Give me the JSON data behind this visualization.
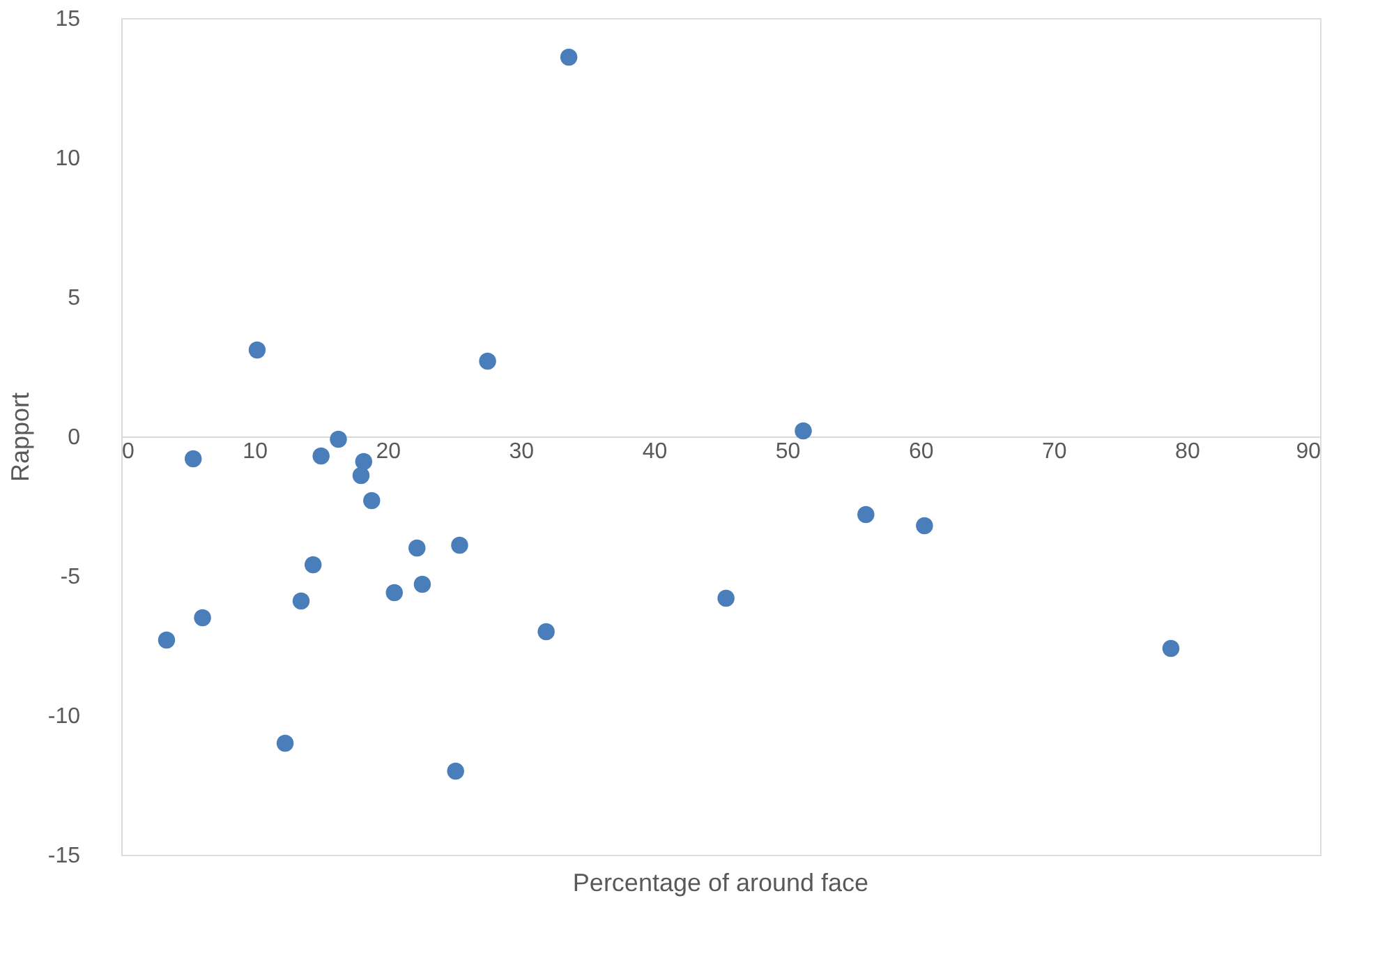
{
  "chart_data": {
    "type": "scatter",
    "xlabel": "Percentage of around face",
    "ylabel": "Rapport",
    "marker": "circle",
    "grid": false,
    "xlim": [
      0,
      90
    ],
    "xticks": [
      0,
      10,
      20,
      30,
      40,
      50,
      60,
      70,
      80,
      90
    ],
    "ylim": [
      -15,
      15
    ],
    "yticks": [
      -15,
      -10,
      -5,
      0,
      5,
      10,
      15
    ],
    "series": [
      {
        "color": "#4a7ebb",
        "x": [
          33.6,
          10.2,
          27.5,
          51.2,
          5.4,
          15.0,
          16.3,
          18.2,
          18.0,
          18.8,
          55.9,
          60.3,
          22.2,
          25.4,
          14.4,
          13.5,
          20.5,
          22.6,
          45.4,
          6.1,
          3.4,
          31.9,
          78.8,
          12.3,
          25.1
        ],
        "values": [
          13.6,
          3.1,
          2.7,
          0.2,
          -0.8,
          -0.7,
          -0.1,
          -0.9,
          -1.4,
          -2.3,
          -2.8,
          -3.2,
          -4.0,
          -3.9,
          -4.6,
          -5.9,
          -5.6,
          -5.3,
          -5.8,
          -6.5,
          -7.3,
          -7.0,
          -7.6,
          -11.0,
          -12.0
        ]
      }
    ]
  }
}
